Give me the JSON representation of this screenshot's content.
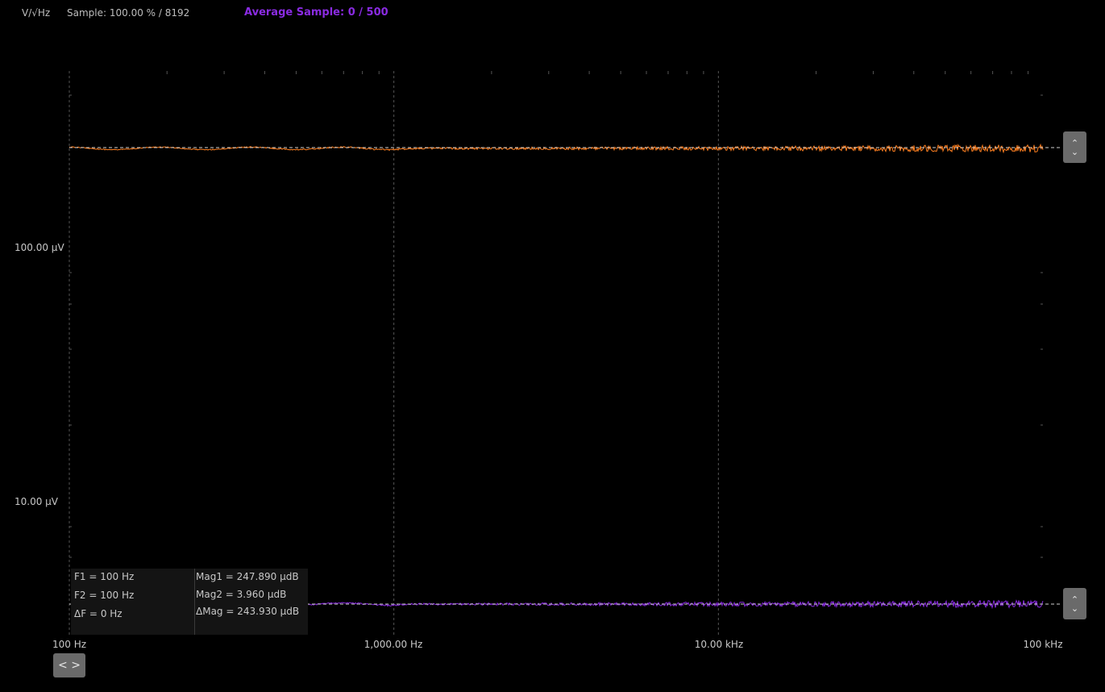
{
  "header": {
    "unit": "V/√Hz",
    "sample": "Sample: 100.00 % / 8192",
    "average_sample": "Average Sample: 0 / 500"
  },
  "axes": {
    "y_labels": [
      "100.00 µV",
      "10.00 µV"
    ],
    "x_labels": [
      "100 Hz",
      "1,000.00 Hz",
      "10.00 kHz",
      "100 kHz"
    ]
  },
  "colors": {
    "trace1": "#ff7f1f",
    "trace2": "#8a2be2",
    "grid": "#555555",
    "background": "#000000"
  },
  "cursor_readout": {
    "f1_label": "F1 =",
    "f1_value": "100 Hz",
    "f2_label": "F2 =",
    "f2_value": "100 Hz",
    "df_label": "ΔF =",
    "df_value": "0 Hz",
    "mag1_label": "Mag1 =",
    "mag1_value": "247.890 µdB",
    "mag2_label": "Mag2 =",
    "mag2_value": "3.960 µdB",
    "dmag_label": "ΔMag =",
    "dmag_value": "243.930 µdB"
  },
  "controls": {
    "scroll_up": "⌃",
    "scroll_down": "⌄",
    "pan": "< >"
  },
  "icons": [
    "chevron-up-icon",
    "chevron-down-icon",
    "pan-left-right-icon"
  ]
}
